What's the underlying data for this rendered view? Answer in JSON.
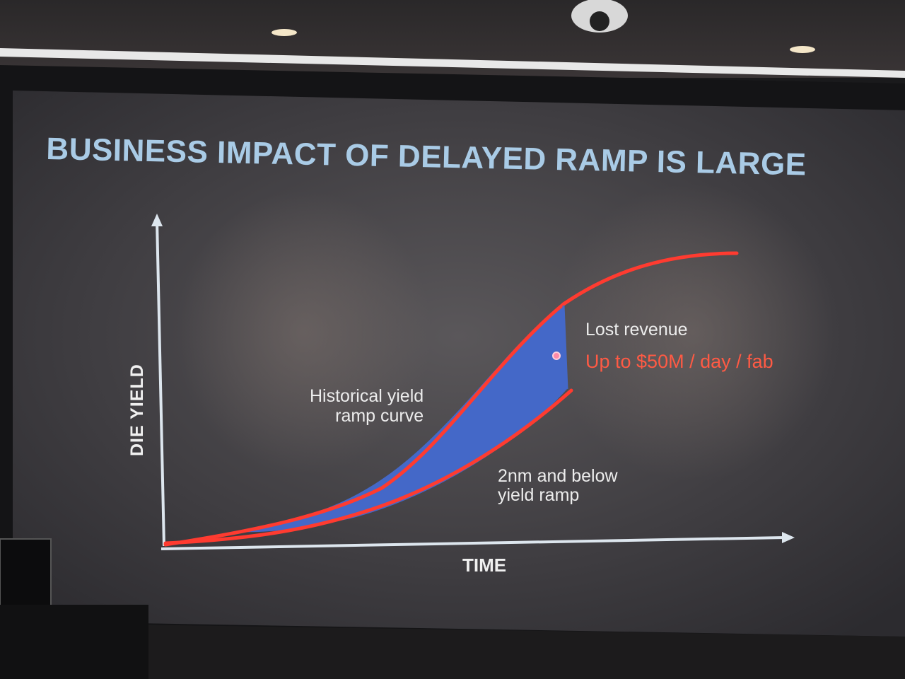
{
  "slide": {
    "title": "BUSINESS IMPACT OF DELAYED RAMP IS LARGE",
    "y_axis_label": "DIE YIELD",
    "x_axis_label": "TIME",
    "annotations": {
      "historical": [
        "Historical yield",
        "ramp curve"
      ],
      "below": [
        "2nm and below",
        "yield ramp"
      ],
      "lost_revenue": "Lost revenue",
      "amount": "Up to $50M / day / fab"
    }
  },
  "colors": {
    "title": "#a9cbe6",
    "curve": "#ff3b30",
    "fill": "#4468c8",
    "highlight": "#ff5a44"
  }
}
